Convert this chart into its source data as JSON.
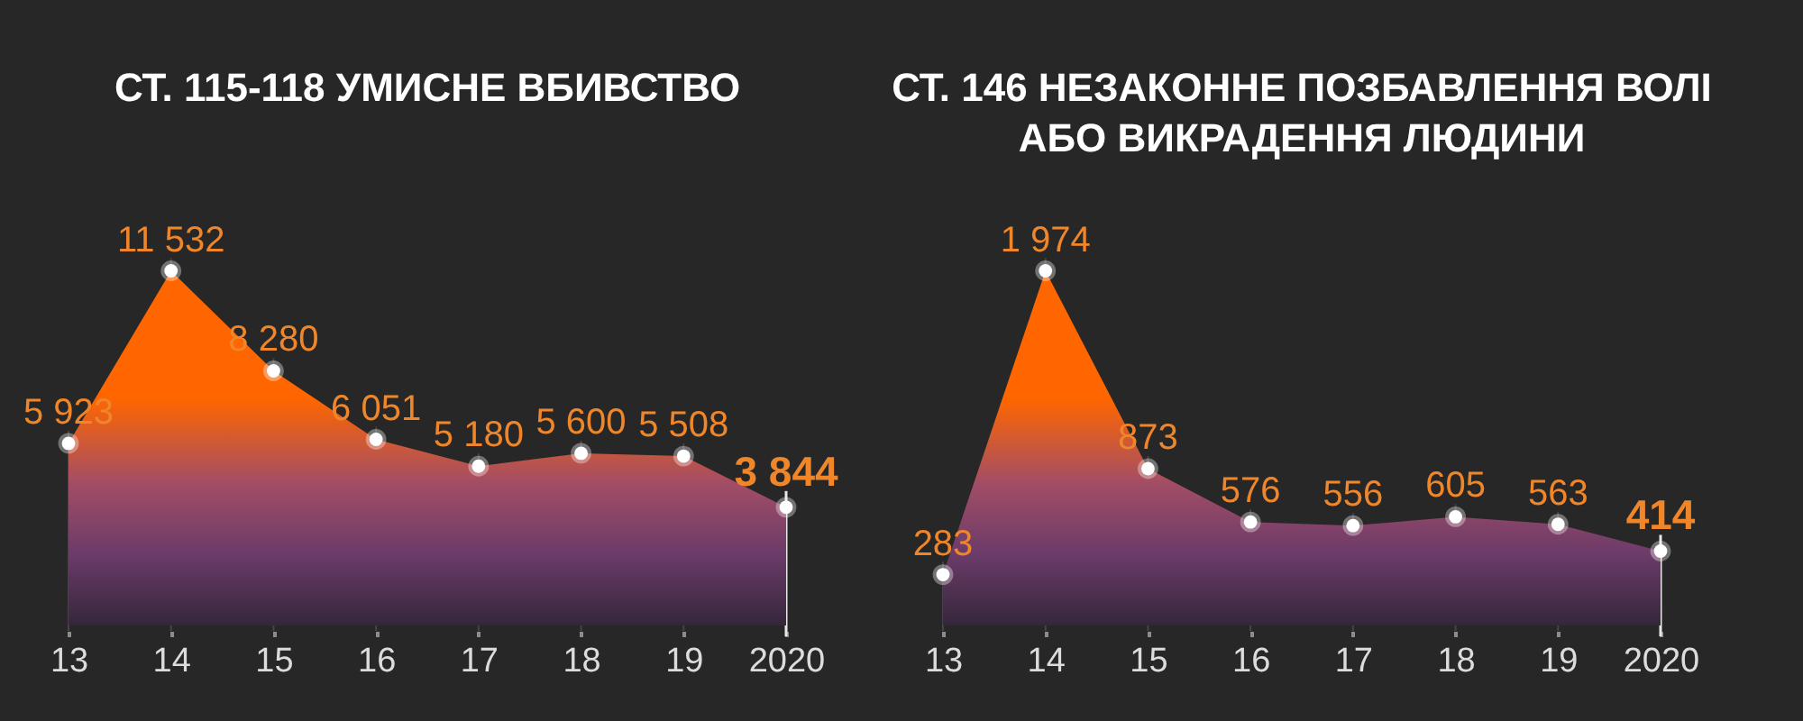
{
  "chart_data": [
    {
      "type": "area",
      "title": "СТ. 115-118 УМИСНЕ ВБИВСТВО",
      "categories": [
        "13",
        "14",
        "15",
        "16",
        "17",
        "18",
        "19",
        "2020"
      ],
      "series": [
        {
          "color": "#ff6600",
          "values": [
            5923,
            11532,
            8280,
            6051,
            5180,
            5600,
            5508,
            3844
          ],
          "value_labels": [
            "5 923",
            "11 532",
            "8 280",
            "6 051",
            "5 180",
            "5 600",
            "5 508",
            "3 844"
          ]
        }
      ],
      "marker": "circle",
      "grid": "x",
      "tick_labels": "x",
      "ref_lines": [
        {
          "axis": "x",
          "value": "2020"
        }
      ]
    },
    {
      "type": "area",
      "title": "СТ. 146 НЕЗАКОННЕ ПОЗБАВЛЕННЯ ВОЛІ\nАБО ВИКРАДЕННЯ ЛЮДИНИ",
      "categories": [
        "13",
        "14",
        "15",
        "16",
        "17",
        "18",
        "19",
        "2020"
      ],
      "series": [
        {
          "color": "#ff6600",
          "values": [
            283,
            1974,
            873,
            576,
            556,
            605,
            563,
            414
          ],
          "value_labels": [
            "283",
            "1 974",
            "873",
            "576",
            "556",
            "605",
            "563",
            "414"
          ]
        }
      ],
      "marker": "circle",
      "grid": "x",
      "tick_labels": "x",
      "ref_lines": [
        {
          "axis": "x",
          "value": "2020"
        }
      ]
    }
  ]
}
